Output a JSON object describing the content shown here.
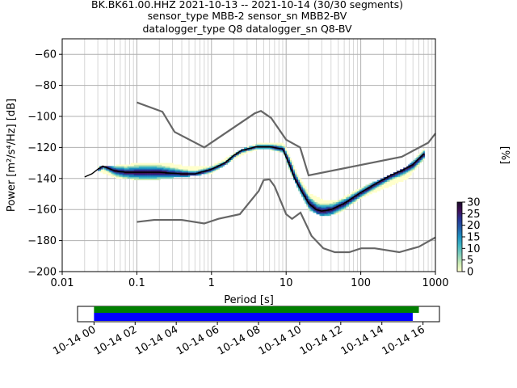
{
  "chart_data": [
    {
      "type": "heatmap",
      "title_lines": [
        "BK.BK61.00.HHZ   2021-10-13 -- 2021-10-14  (30/30 segments)",
        "sensor_type MBB-2 sensor_sn MBB2-BV",
        "datalogger_type Q8 datalogger_sn Q8-BV"
      ],
      "xlabel": "Period [s]",
      "ylabel": "Power [m²/s⁴/Hz] [dB]",
      "x_scale": "log",
      "xlim": [
        0.01,
        1000
      ],
      "ylim": [
        -200,
        -50
      ],
      "x_ticks": [
        0.01,
        0.1,
        1,
        10,
        100,
        1000
      ],
      "x_tick_labels": [
        "0.01",
        "0.1",
        "1",
        "10",
        "100",
        "1000"
      ],
      "y_ticks": [
        -200,
        -180,
        -160,
        -140,
        -120,
        -100,
        -80,
        -60
      ],
      "y_tick_labels": [
        "−200",
        "−180",
        "−160",
        "−140",
        "−120",
        "−100",
        "−80",
        "−60"
      ],
      "grid": true,
      "colorbar": {
        "label": "[%]",
        "range": [
          0,
          30
        ],
        "ticks": [
          "0",
          "5",
          "10",
          "15",
          "20",
          "25",
          "30"
        ],
        "colors": [
          "#ffffcc",
          "#c7e9b4",
          "#7fcdbb",
          "#41b6c4",
          "#1d91c0",
          "#225ea8",
          "#253494",
          "#3f0f58",
          "#1a0a2a"
        ]
      },
      "noise_model_high": [
        [
          0.1,
          -91
        ],
        [
          0.22,
          -97
        ],
        [
          0.32,
          -110
        ],
        [
          0.8,
          -120
        ],
        [
          3.8,
          -98
        ],
        [
          4.6,
          -96.5
        ],
        [
          6.3,
          -101
        ],
        [
          10,
          -115
        ],
        [
          15.4,
          -120
        ],
        [
          20,
          -138
        ],
        [
          354,
          -126
        ],
        [
          800,
          -117
        ],
        [
          1000,
          -111
        ]
      ],
      "noise_model_low": [
        [
          0.1,
          -168
        ],
        [
          0.17,
          -166.7
        ],
        [
          0.4,
          -166.7
        ],
        [
          0.8,
          -169
        ],
        [
          1.24,
          -166
        ],
        [
          2.4,
          -163
        ],
        [
          4.3,
          -148
        ],
        [
          5,
          -141
        ],
        [
          6,
          -140.6
        ],
        [
          7,
          -145
        ],
        [
          10,
          -163
        ],
        [
          12,
          -166
        ],
        [
          15.6,
          -162
        ],
        [
          21.9,
          -177
        ],
        [
          31.6,
          -185
        ],
        [
          45,
          -187.5
        ],
        [
          70,
          -187.5
        ],
        [
          101,
          -185
        ],
        [
          154,
          -185
        ],
        [
          328,
          -187.5
        ],
        [
          600,
          -184
        ],
        [
          1000,
          -178
        ]
      ],
      "mode_line": [
        [
          0.02,
          -139
        ],
        [
          0.025,
          -137
        ],
        [
          0.03,
          -134
        ],
        [
          0.035,
          -132
        ],
        [
          0.05,
          -135
        ],
        [
          0.07,
          -136
        ],
        [
          0.1,
          -136
        ],
        [
          0.2,
          -136
        ],
        [
          0.4,
          -137
        ],
        [
          0.6,
          -137
        ],
        [
          1,
          -134
        ],
        [
          1.5,
          -130
        ],
        [
          2,
          -125
        ],
        [
          2.5,
          -122
        ],
        [
          3,
          -121
        ],
        [
          4,
          -119.5
        ],
        [
          6,
          -119.5
        ],
        [
          9,
          -121
        ],
        [
          11,
          -131
        ],
        [
          13,
          -140
        ],
        [
          16,
          -148
        ],
        [
          20,
          -156
        ],
        [
          25,
          -160
        ],
        [
          30,
          -161
        ],
        [
          40,
          -160
        ],
        [
          60,
          -156
        ],
        [
          100,
          -149
        ],
        [
          150,
          -144
        ],
        [
          250,
          -138
        ],
        [
          350,
          -135
        ],
        [
          500,
          -131
        ],
        [
          700,
          -124
        ]
      ],
      "density_upper": [
        [
          0.03,
          -132
        ],
        [
          0.05,
          -132
        ],
        [
          0.08,
          -131
        ],
        [
          0.12,
          -130
        ],
        [
          0.2,
          -130
        ],
        [
          0.3,
          -131
        ],
        [
          0.5,
          -133
        ],
        [
          1,
          -132
        ],
        [
          2,
          -124
        ],
        [
          3,
          -120
        ],
        [
          4,
          -118
        ],
        [
          6,
          -117.5
        ],
        [
          9,
          -118
        ],
        [
          11,
          -126
        ],
        [
          14,
          -138
        ],
        [
          20,
          -150
        ],
        [
          30,
          -154
        ],
        [
          50,
          -154
        ],
        [
          100,
          -146
        ],
        [
          200,
          -140
        ],
        [
          400,
          -133
        ],
        [
          700,
          -121
        ]
      ],
      "density_lower": [
        [
          0.03,
          -135
        ],
        [
          0.05,
          -139
        ],
        [
          0.08,
          -140
        ],
        [
          0.12,
          -141
        ],
        [
          0.2,
          -140
        ],
        [
          0.3,
          -139
        ],
        [
          0.5,
          -138
        ],
        [
          1,
          -136
        ],
        [
          2,
          -127
        ],
        [
          3,
          -123
        ],
        [
          4,
          -121
        ],
        [
          6,
          -121
        ],
        [
          9,
          -123
        ],
        [
          11,
          -135
        ],
        [
          14,
          -146
        ],
        [
          20,
          -160
        ],
        [
          30,
          -164
        ],
        [
          50,
          -162
        ],
        [
          100,
          -152
        ],
        [
          200,
          -146
        ],
        [
          400,
          -140
        ],
        [
          700,
          -127
        ]
      ]
    },
    {
      "type": "timeline",
      "x_tick_labels": [
        "10-14 00",
        "10-14 02",
        "10-14 04",
        "10-14 06",
        "10-14 08",
        "10-14 10",
        "10-14 12",
        "10-14 14",
        "10-14 16"
      ],
      "x_tick_hours": [
        0,
        2,
        4,
        6,
        8,
        10,
        12,
        14,
        16
      ],
      "xlim_hours": [
        -0.8,
        16.8
      ],
      "bars": [
        {
          "color": "#008000",
          "start_hour": 0,
          "end_hour": 15.8
        },
        {
          "color": "#0000ff",
          "start_hour": 0,
          "end_hour": 15.5
        }
      ]
    }
  ]
}
